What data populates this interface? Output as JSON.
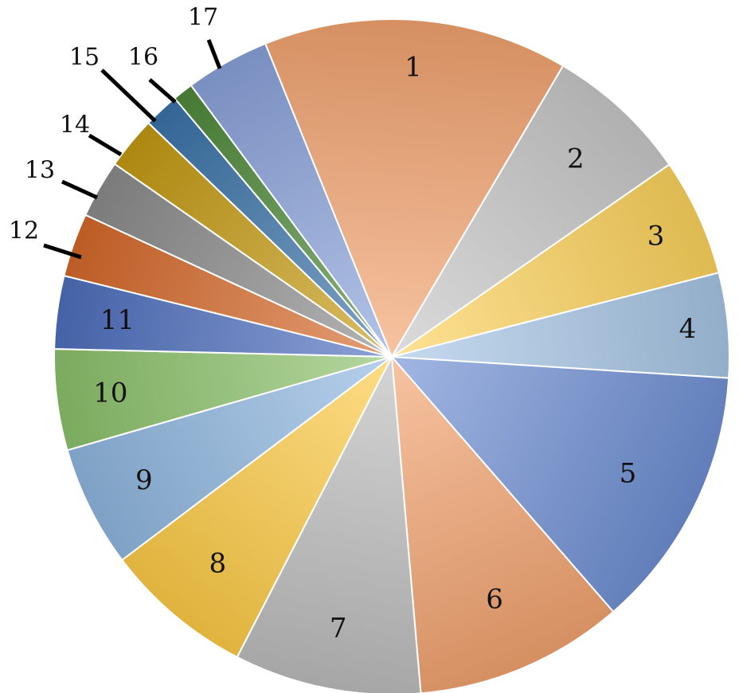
{
  "chart_data": {
    "type": "pie",
    "title": "",
    "legend": "none",
    "labels": [
      "1",
      "2",
      "3",
      "4",
      "5",
      "6",
      "7",
      "8",
      "9",
      "10",
      "11",
      "12",
      "13",
      "14",
      "15",
      "16",
      "17"
    ],
    "values": [
      16.3,
      7.7,
      6.3,
      5.6,
      14.1,
      11.2,
      10.0,
      8.0,
      6.5,
      5.4,
      3.9,
      3.4,
      3.1,
      2.8,
      1.9,
      1.1,
      4.5
    ],
    "colors": [
      "#F2A26E",
      "#C8C8C8",
      "#FDD35C",
      "#A7C6E6",
      "#6E8FD3",
      "#F2A26E",
      "#BDBDBD",
      "#FDCB45",
      "#8FB7E0",
      "#8CC26B",
      "#4E6FBE",
      "#D6692A",
      "#8C8C8C",
      "#C59A12",
      "#3A73A8",
      "#4E8A3A",
      "#8AA3DA"
    ],
    "start_angle_deg": -22,
    "direction": "clockwise"
  }
}
